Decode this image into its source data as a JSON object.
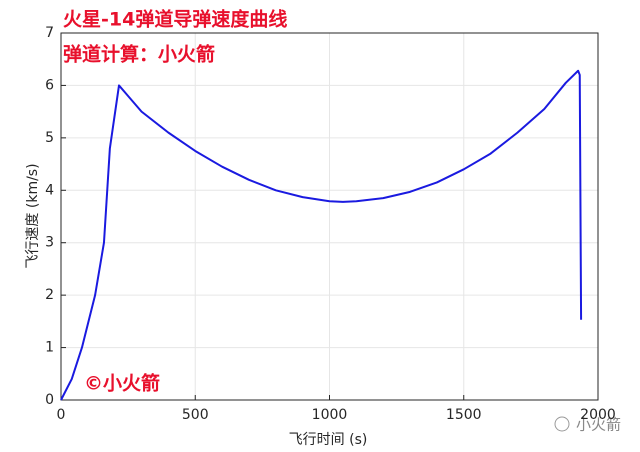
{
  "chart_data": {
    "type": "line",
    "xlabel": "飞行时间 (s)",
    "ylabel": "飞行速度 (km/s)",
    "annotations": [
      "火星-14弹道导弹速度曲线",
      "弹道计算：小火箭",
      "©小火箭"
    ],
    "watermark": "小火箭",
    "x": [
      0,
      40,
      78,
      127,
      160,
      182,
      216,
      300,
      400,
      500,
      600,
      700,
      800,
      900,
      1000,
      1050,
      1100,
      1200,
      1300,
      1400,
      1500,
      1600,
      1700,
      1800,
      1880,
      1926,
      1932,
      1937
    ],
    "series": [
      {
        "color": "#1a1ae0",
        "values": [
          0,
          0.4,
          1,
          2,
          3,
          4.8,
          6.0,
          5.5,
          5.1,
          4.75,
          4.45,
          4.2,
          4.0,
          3.87,
          3.79,
          3.78,
          3.79,
          3.85,
          3.97,
          4.15,
          4.4,
          4.7,
          5.1,
          5.55,
          6.05,
          6.28,
          6.2,
          1.53
        ]
      }
    ],
    "xlim": [
      0,
      2000
    ],
    "xticks": [
      0,
      500,
      1000,
      1500,
      2000
    ],
    "ylim": [
      0,
      7
    ],
    "yticks": [
      0,
      1,
      2,
      3,
      4,
      5,
      6,
      7
    ],
    "grid": true
  }
}
